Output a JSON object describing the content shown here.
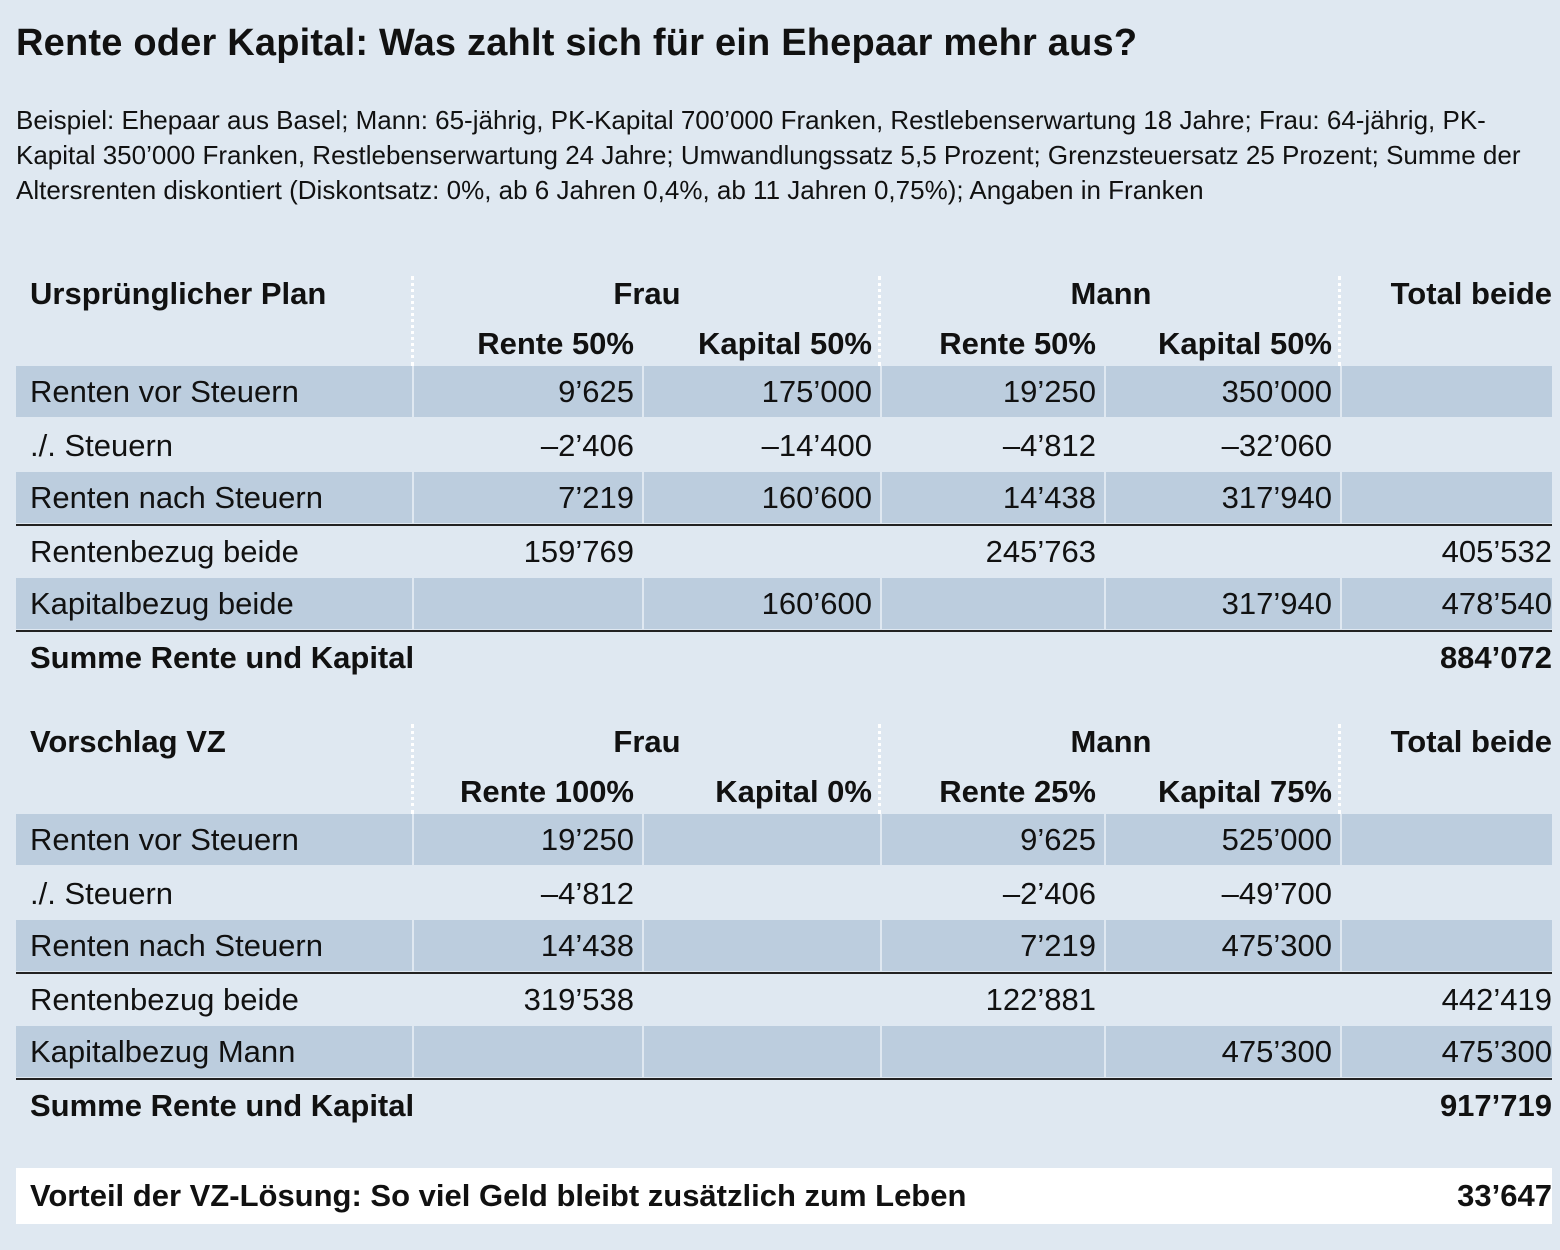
{
  "title": "Rente oder Kapital: Was zahlt sich für ein Ehepaar mehr aus?",
  "intro": "Beispiel: Ehepaar aus Basel; Mann: 65-jährig, PK-Kapital 700’000 Franken, Restlebenserwartung 18 Jahre; Frau: 64-jährig, PK-Kapital 350’000 Franken, Restlebenserwartung 24 Jahre; Umwandlungssatz 5,5 Prozent; Grenzsteuersatz 25 Prozent; Summe der Altersrenten diskontiert (Diskontsatz: 0%, ab 6 Jahren 0,4%, ab 11 Jahren 0,75%); Angaben in Franken",
  "tables": [
    {
      "heading": "Ursprünglicher Plan",
      "frau": "Frau",
      "mann": "Mann",
      "total": "Total beide",
      "subheads": [
        "Rente 50%",
        "Kapital 50%",
        "Rente 50%",
        "Kapital 50%"
      ],
      "rows": [
        {
          "label": "Renten vor Steuern",
          "cells": [
            "9’625",
            "175’000",
            "19’250",
            "350’000",
            ""
          ]
        },
        {
          "label": "./. Steuern",
          "cells": [
            "–2’406",
            "–14’400",
            "–4’812",
            "–32’060",
            ""
          ]
        },
        {
          "label": "Renten nach Steuern",
          "cells": [
            "7’219",
            "160’600",
            "14’438",
            "317’940",
            ""
          ]
        },
        {
          "label": "Rentenbezug beide",
          "cells": [
            "159’769",
            "",
            "245’763",
            "",
            "405’532"
          ]
        },
        {
          "label": "Kapitalbezug beide",
          "cells": [
            "",
            "160’600",
            "",
            "317’940",
            "478’540"
          ]
        }
      ],
      "sum_label": "Summe Rente und Kapital",
      "sum_value": "884’072"
    },
    {
      "heading": "Vorschlag VZ",
      "frau": "Frau",
      "mann": "Mann",
      "total": "Total beide",
      "subheads": [
        "Rente 100%",
        "Kapital 0%",
        "Rente 25%",
        "Kapital 75%"
      ],
      "rows": [
        {
          "label": "Renten vor Steuern",
          "cells": [
            "19’250",
            "",
            "9’625",
            "525’000",
            ""
          ]
        },
        {
          "label": "./. Steuern",
          "cells": [
            "–4’812",
            "",
            "–2’406",
            "–49’700",
            ""
          ]
        },
        {
          "label": "Renten nach Steuern",
          "cells": [
            "14’438",
            "",
            "7’219",
            "475’300",
            ""
          ]
        },
        {
          "label": "Rentenbezug beide",
          "cells": [
            "319’538",
            "",
            "122’881",
            "",
            "442’419"
          ]
        },
        {
          "label": "Kapitalbezug Mann",
          "cells": [
            "",
            "",
            "",
            "475’300",
            "475’300"
          ]
        }
      ],
      "sum_label": "Summe Rente und Kapital",
      "sum_value": "917’719"
    }
  ],
  "footer": {
    "label": "Vorteil der VZ-Lösung: So viel Geld bleibt zusätzlich zum Leben",
    "value": "33’647"
  }
}
